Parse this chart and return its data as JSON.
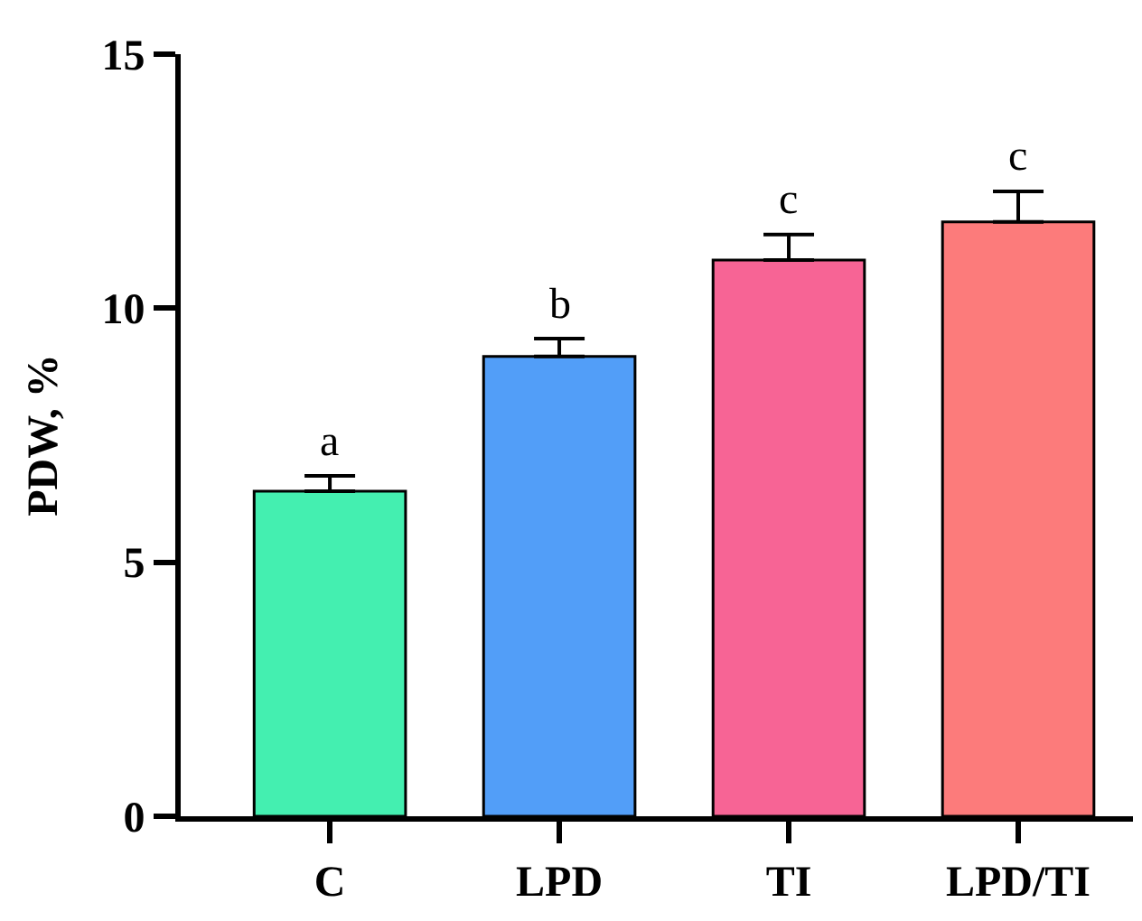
{
  "chart_data": {
    "type": "bar",
    "ylabel": "PDW, %",
    "categories": [
      "C",
      "LPD",
      "TI",
      "LPD/TI"
    ],
    "values": [
      6.4,
      9.05,
      10.95,
      11.7
    ],
    "errors": [
      [
        6.4,
        6.7
      ],
      [
        9.05,
        9.4
      ],
      [
        10.95,
        11.45
      ],
      [
        11.7,
        12.3
      ]
    ],
    "colors": [
      "#44efb0",
      "#529ef8",
      "#f76495",
      "#fc7b7b"
    ],
    "ylim": [
      0,
      15
    ],
    "yticks": [
      0,
      5,
      10,
      15
    ],
    "grid": false,
    "annotations": [
      {
        "text": "a",
        "x": "C",
        "y": 6.7
      },
      {
        "text": "b",
        "x": "LPD",
        "y": 9.4
      },
      {
        "text": "c",
        "x": "TI",
        "y": 11.45
      },
      {
        "text": "c",
        "x": "LPD/TI",
        "y": 12.3
      }
    ]
  }
}
